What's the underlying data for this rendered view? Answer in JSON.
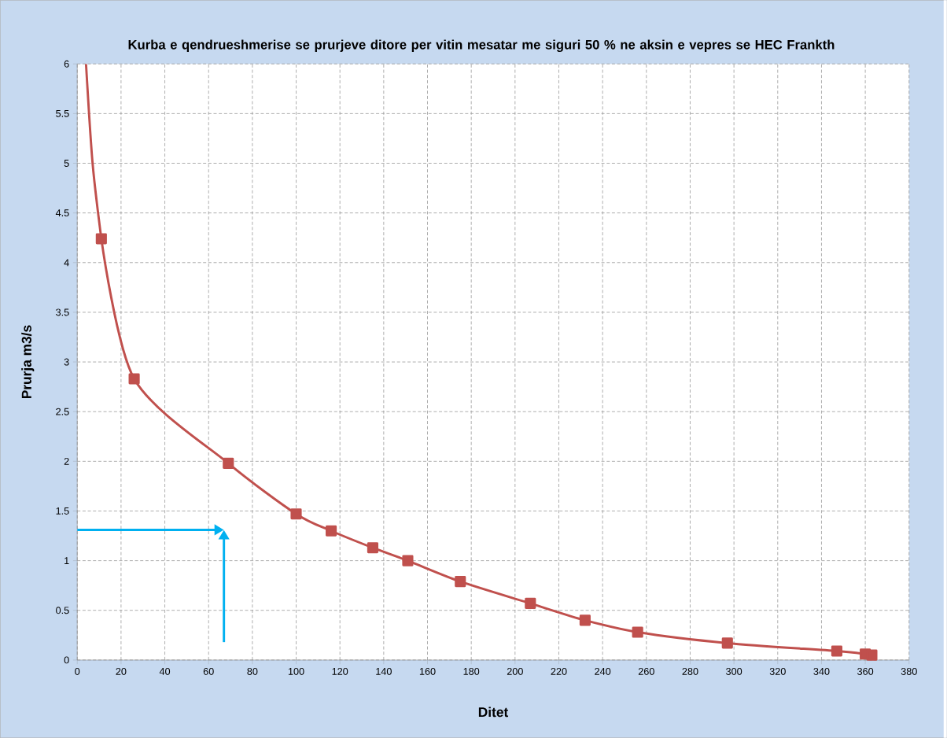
{
  "chart_data": {
    "type": "line",
    "title": "Kurba e qendrueshmerise se prurjeve ditore per vitin mesatar me siguri 50 % ne aksin e vepres se HEC Frankth",
    "xlabel": "Ditet",
    "ylabel": "Prurja m3/s",
    "series": [
      {
        "marker": "none",
        "color": "#c0504d",
        "x": [
          4,
          7,
          11
        ],
        "values": [
          6,
          5,
          4.24
        ]
      },
      {
        "marker": "square",
        "color": "#c0504d",
        "x": [
          11,
          26,
          69,
          100,
          116,
          135,
          151,
          175,
          207,
          232,
          256,
          297,
          347,
          360,
          363
        ],
        "values": [
          4.24,
          2.83,
          1.98,
          1.47,
          1.3,
          1.13,
          1.0,
          0.79,
          0.57,
          0.4,
          0.28,
          0.17,
          0.09,
          0.06,
          0.05
        ]
      }
    ],
    "xlim": [
      0,
      380
    ],
    "ylim": [
      0,
      6
    ],
    "xticks": [
      0,
      20,
      40,
      60,
      80,
      100,
      120,
      140,
      160,
      180,
      200,
      220,
      240,
      260,
      280,
      300,
      320,
      340,
      360,
      380
    ],
    "yticks": [
      0,
      0.5,
      1,
      1.5,
      2,
      2.5,
      3,
      3.5,
      4,
      4.5,
      5,
      5.5,
      6
    ],
    "grid": true,
    "ref_lines": [
      {
        "axis": "y",
        "value": 1.31,
        "color": "#00b0f0"
      },
      {
        "axis": "x",
        "value": 67,
        "color": "#00b0f0"
      }
    ]
  }
}
